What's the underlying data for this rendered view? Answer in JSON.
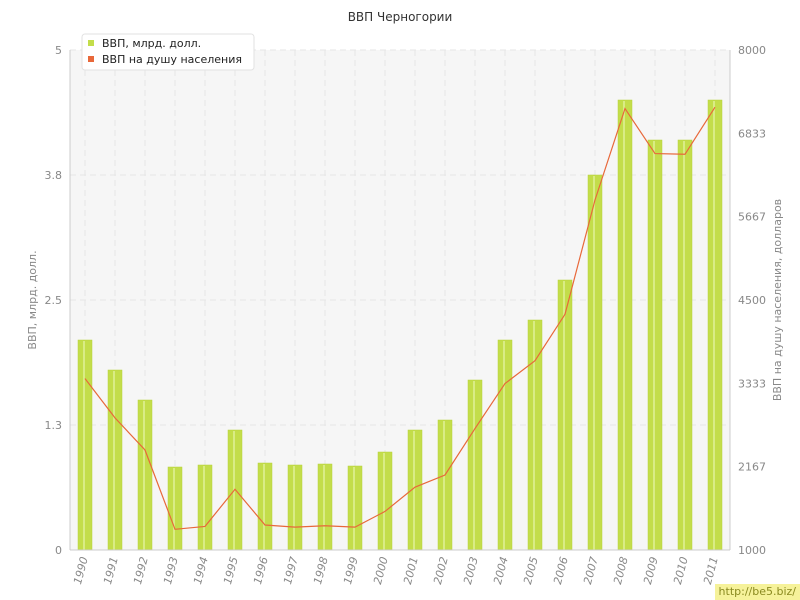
{
  "chart_data": {
    "type": "bar+line",
    "title": "ВВП Черногории",
    "ylabel_left": "ВВП, млрд. долл.",
    "ylabel_right": "ВВП на душу населения, долларов",
    "categories": [
      "1990",
      "1991",
      "1992",
      "1993",
      "1994",
      "1995",
      "1996",
      "1997",
      "1998",
      "1999",
      "2000",
      "2001",
      "2002",
      "2003",
      "2004",
      "2005",
      "2006",
      "2007",
      "2008",
      "2009",
      "2010",
      "2011"
    ],
    "left_axis": {
      "ylim": [
        0,
        5
      ],
      "ticks": [
        "0",
        "1.3",
        "2.5",
        "3.8",
        "5"
      ],
      "tick_values": [
        0,
        1.25,
        2.5,
        3.75,
        5
      ]
    },
    "right_axis": {
      "ylim": [
        1000,
        8000
      ],
      "ticks": [
        "1000",
        "2167",
        "3333",
        "4500",
        "5667",
        "6833",
        "8000"
      ],
      "tick_values": [
        1000,
        2167,
        3333,
        4500,
        5667,
        6833,
        8000
      ]
    },
    "series": [
      {
        "name": "ВВП, млрд. долл.",
        "kind": "bar",
        "axis": "left",
        "color": "#c3dd4a",
        "values": [
          2.1,
          1.8,
          1.5,
          0.83,
          0.85,
          1.2,
          0.87,
          0.85,
          0.86,
          0.84,
          0.98,
          1.2,
          1.3,
          1.7,
          2.1,
          2.3,
          2.7,
          3.75,
          4.5,
          4.1,
          4.1,
          4.5
        ]
      },
      {
        "name": "ВВП на душу населения",
        "kind": "line",
        "axis": "right",
        "color": "#e8683a",
        "values": [
          3400,
          2850,
          2400,
          1290,
          1330,
          1850,
          1350,
          1320,
          1340,
          1320,
          1540,
          1880,
          2050,
          2700,
          3330,
          3650,
          4300,
          5900,
          7180,
          6550,
          6540,
          7200
        ]
      }
    ],
    "legend_position": "top-left",
    "grid": true
  },
  "watermark": "http://be5.biz/"
}
